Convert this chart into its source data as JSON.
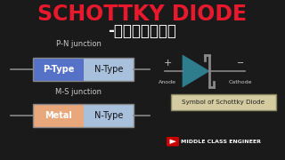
{
  "bg_color": "#1a1a1a",
  "title": "SCHOTTKY DIODE",
  "title_color": "#e8192c",
  "subtitle": "-தமிழில்",
  "subtitle_color": "#ffffff",
  "pn_label": "P-N junction",
  "ms_label": "M-S junction",
  "ptype_color": "#5572c8",
  "ptype_text": "P-Type",
  "ptype_text_color": "#ffffff",
  "ntype_color_pn": "#a8c0dc",
  "ntype_color_ms": "#a8c0dc",
  "ntype_text": "N-Type",
  "ntype_text_color": "#111111",
  "metal_color": "#e8a87c",
  "metal_text": "Metal",
  "metal_text_color": "#ffffff",
  "diode_color": "#2e7d8c",
  "diode_edge": "#2e7d8c",
  "symbol_box_color": "#d4cba0",
  "symbol_box_edge": "#888866",
  "symbol_text": "Symbol of Schottky Diode",
  "yt_red": "#cc0000",
  "channel_text": "MIDDLE CLASS ENGINEER",
  "channel_text_color": "#ffffff",
  "plus_color": "#cccccc",
  "minus_color": "#cccccc",
  "line_color": "#888888",
  "wire_color": "#888888",
  "label_color": "#cccccc",
  "box_border_color": "#888888",
  "anode_label": "Anode",
  "cathode_label": "Cathode"
}
